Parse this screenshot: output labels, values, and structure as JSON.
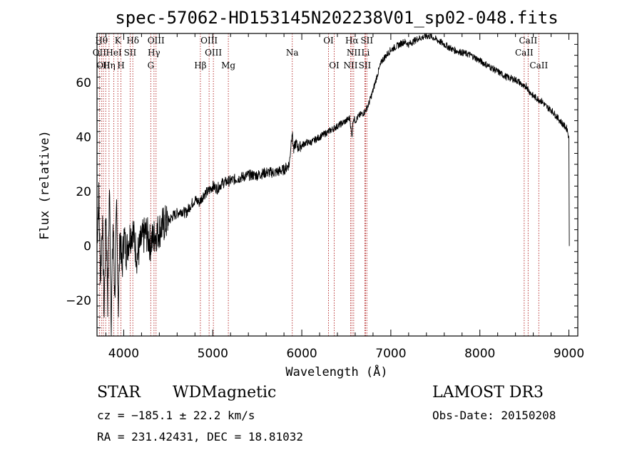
{
  "chart_data": {
    "type": "line",
    "title": "spec-57062-HD153145N202238V01_sp02-048.fits",
    "xlabel": "Wavelength (Å)",
    "ylabel": "Flux (relative)",
    "xlim": [
      3700,
      9100
    ],
    "ylim": [
      -33,
      78
    ],
    "x_ticks": [
      4000,
      5000,
      6000,
      7000,
      8000,
      9000
    ],
    "y_ticks": [
      -20,
      0,
      20,
      40,
      60
    ],
    "series": [
      {
        "name": "spectrum",
        "x": [
          3700,
          3720,
          3740,
          3760,
          3780,
          3800,
          3820,
          3840,
          3860,
          3880,
          3900,
          3920,
          3940,
          3960,
          3980,
          4000,
          4030,
          4060,
          4100,
          4150,
          4200,
          4250,
          4300,
          4350,
          4400,
          4450,
          4500,
          4550,
          4600,
          4650,
          4700,
          4750,
          4800,
          4850,
          4900,
          4950,
          5000,
          5050,
          5100,
          5200,
          5300,
          5400,
          5500,
          5600,
          5700,
          5800,
          5860,
          5890,
          5910,
          5930,
          5960,
          6000,
          6050,
          6100,
          6150,
          6200,
          6250,
          6300,
          6350,
          6400,
          6450,
          6500,
          6540,
          6562,
          6580,
          6600,
          6650,
          6700,
          6720,
          6750,
          6800,
          6850,
          6900,
          6950,
          7000,
          7050,
          7100,
          7150,
          7200,
          7300,
          7400,
          7450,
          7500,
          7550,
          7600,
          7700,
          7800,
          7900,
          8000,
          8100,
          8200,
          8300,
          8400,
          8450,
          8500,
          8520,
          8550,
          8600,
          8650,
          8700,
          8750,
          8800,
          8850,
          8900,
          8950,
          8980,
          9000,
          9005
        ],
        "y": [
          2,
          18,
          -12,
          10,
          -25,
          14,
          -20,
          22,
          -28,
          8,
          -18,
          12,
          -22,
          6,
          -10,
          4,
          -2,
          3,
          6,
          -4,
          2,
          5,
          1,
          4,
          6,
          8,
          9,
          11,
          12,
          13,
          12,
          15,
          17,
          16,
          19,
          20,
          22,
          21,
          23,
          24,
          25,
          26,
          26,
          27,
          27,
          28,
          30,
          42,
          35,
          38,
          36,
          37,
          38,
          38,
          39,
          40,
          41,
          42,
          43,
          44,
          45,
          46,
          47,
          40,
          47,
          46,
          48,
          49,
          50,
          52,
          57,
          63,
          68,
          70,
          72,
          73,
          74,
          75,
          74,
          76,
          77,
          77,
          76,
          75,
          74,
          72,
          71,
          70,
          68,
          66,
          64,
          62,
          61,
          60,
          58,
          59,
          57,
          55,
          54,
          53,
          51,
          50,
          48,
          46,
          44,
          43,
          40,
          0
        ]
      }
    ],
    "spectral_lines": [
      {
        "wavelength": 3727,
        "label": "OII"
      },
      {
        "wavelength": 3750,
        "label": "Hθ"
      },
      {
        "wavelength": 3771,
        "label": "OII"
      },
      {
        "wavelength": 3798,
        "label": "Hη"
      },
      {
        "wavelength": 3835,
        "label": "Hη"
      },
      {
        "wavelength": 3889,
        "label": "HeI"
      },
      {
        "wavelength": 3934,
        "label": "K"
      },
      {
        "wavelength": 3969,
        "label": "H"
      },
      {
        "wavelength": 4072,
        "label": "SII"
      },
      {
        "wavelength": 4102,
        "label": "Hδ"
      },
      {
        "wavelength": 4304,
        "label": "G"
      },
      {
        "wavelength": 4340,
        "label": "Hγ"
      },
      {
        "wavelength": 4363,
        "label": "OIII"
      },
      {
        "wavelength": 4861,
        "label": "Hβ"
      },
      {
        "wavelength": 4959,
        "label": "OIII"
      },
      {
        "wavelength": 5007,
        "label": "OIII"
      },
      {
        "wavelength": 5175,
        "label": "Mg"
      },
      {
        "wavelength": 5893,
        "label": "Na"
      },
      {
        "wavelength": 6300,
        "label": "OI"
      },
      {
        "wavelength": 6364,
        "label": "OI"
      },
      {
        "wavelength": 6548,
        "label": "NII"
      },
      {
        "wavelength": 6563,
        "label": "Hα"
      },
      {
        "wavelength": 6583,
        "label": "NII"
      },
      {
        "wavelength": 6708,
        "label": "Li"
      },
      {
        "wavelength": 6716,
        "label": "SII"
      },
      {
        "wavelength": 6731,
        "label": "SII"
      },
      {
        "wavelength": 8498,
        "label": "CaII"
      },
      {
        "wavelength": 8542,
        "label": "CaII"
      },
      {
        "wavelength": 8662,
        "label": "CaII"
      }
    ],
    "label_rows": [
      [
        "Hθ",
        "K",
        "Hδ",
        "OIII",
        "OIII",
        "OI",
        "Hα",
        "SII",
        "CaII"
      ],
      [
        "OII",
        "HeI",
        "SII",
        "Hγ",
        "OIII",
        "Na",
        "NII",
        "Li",
        "CaII"
      ],
      [
        "OII",
        "Hη",
        "H",
        "G",
        "Hβ",
        "Mg",
        "OI",
        "NII",
        "SII",
        "CaII"
      ]
    ]
  },
  "info": {
    "object_class": "STAR",
    "subclass": "WDMagnetic",
    "survey": "LAMOST DR3",
    "redshift": "cz = −185.1 ± 22.2 km/s",
    "obs_date": "Obs-Date: 20150208",
    "coords": "RA = 231.42431, DEC =  18.81032"
  },
  "colors": {
    "line_marker": "#b22222",
    "spectrum": "#000000"
  }
}
